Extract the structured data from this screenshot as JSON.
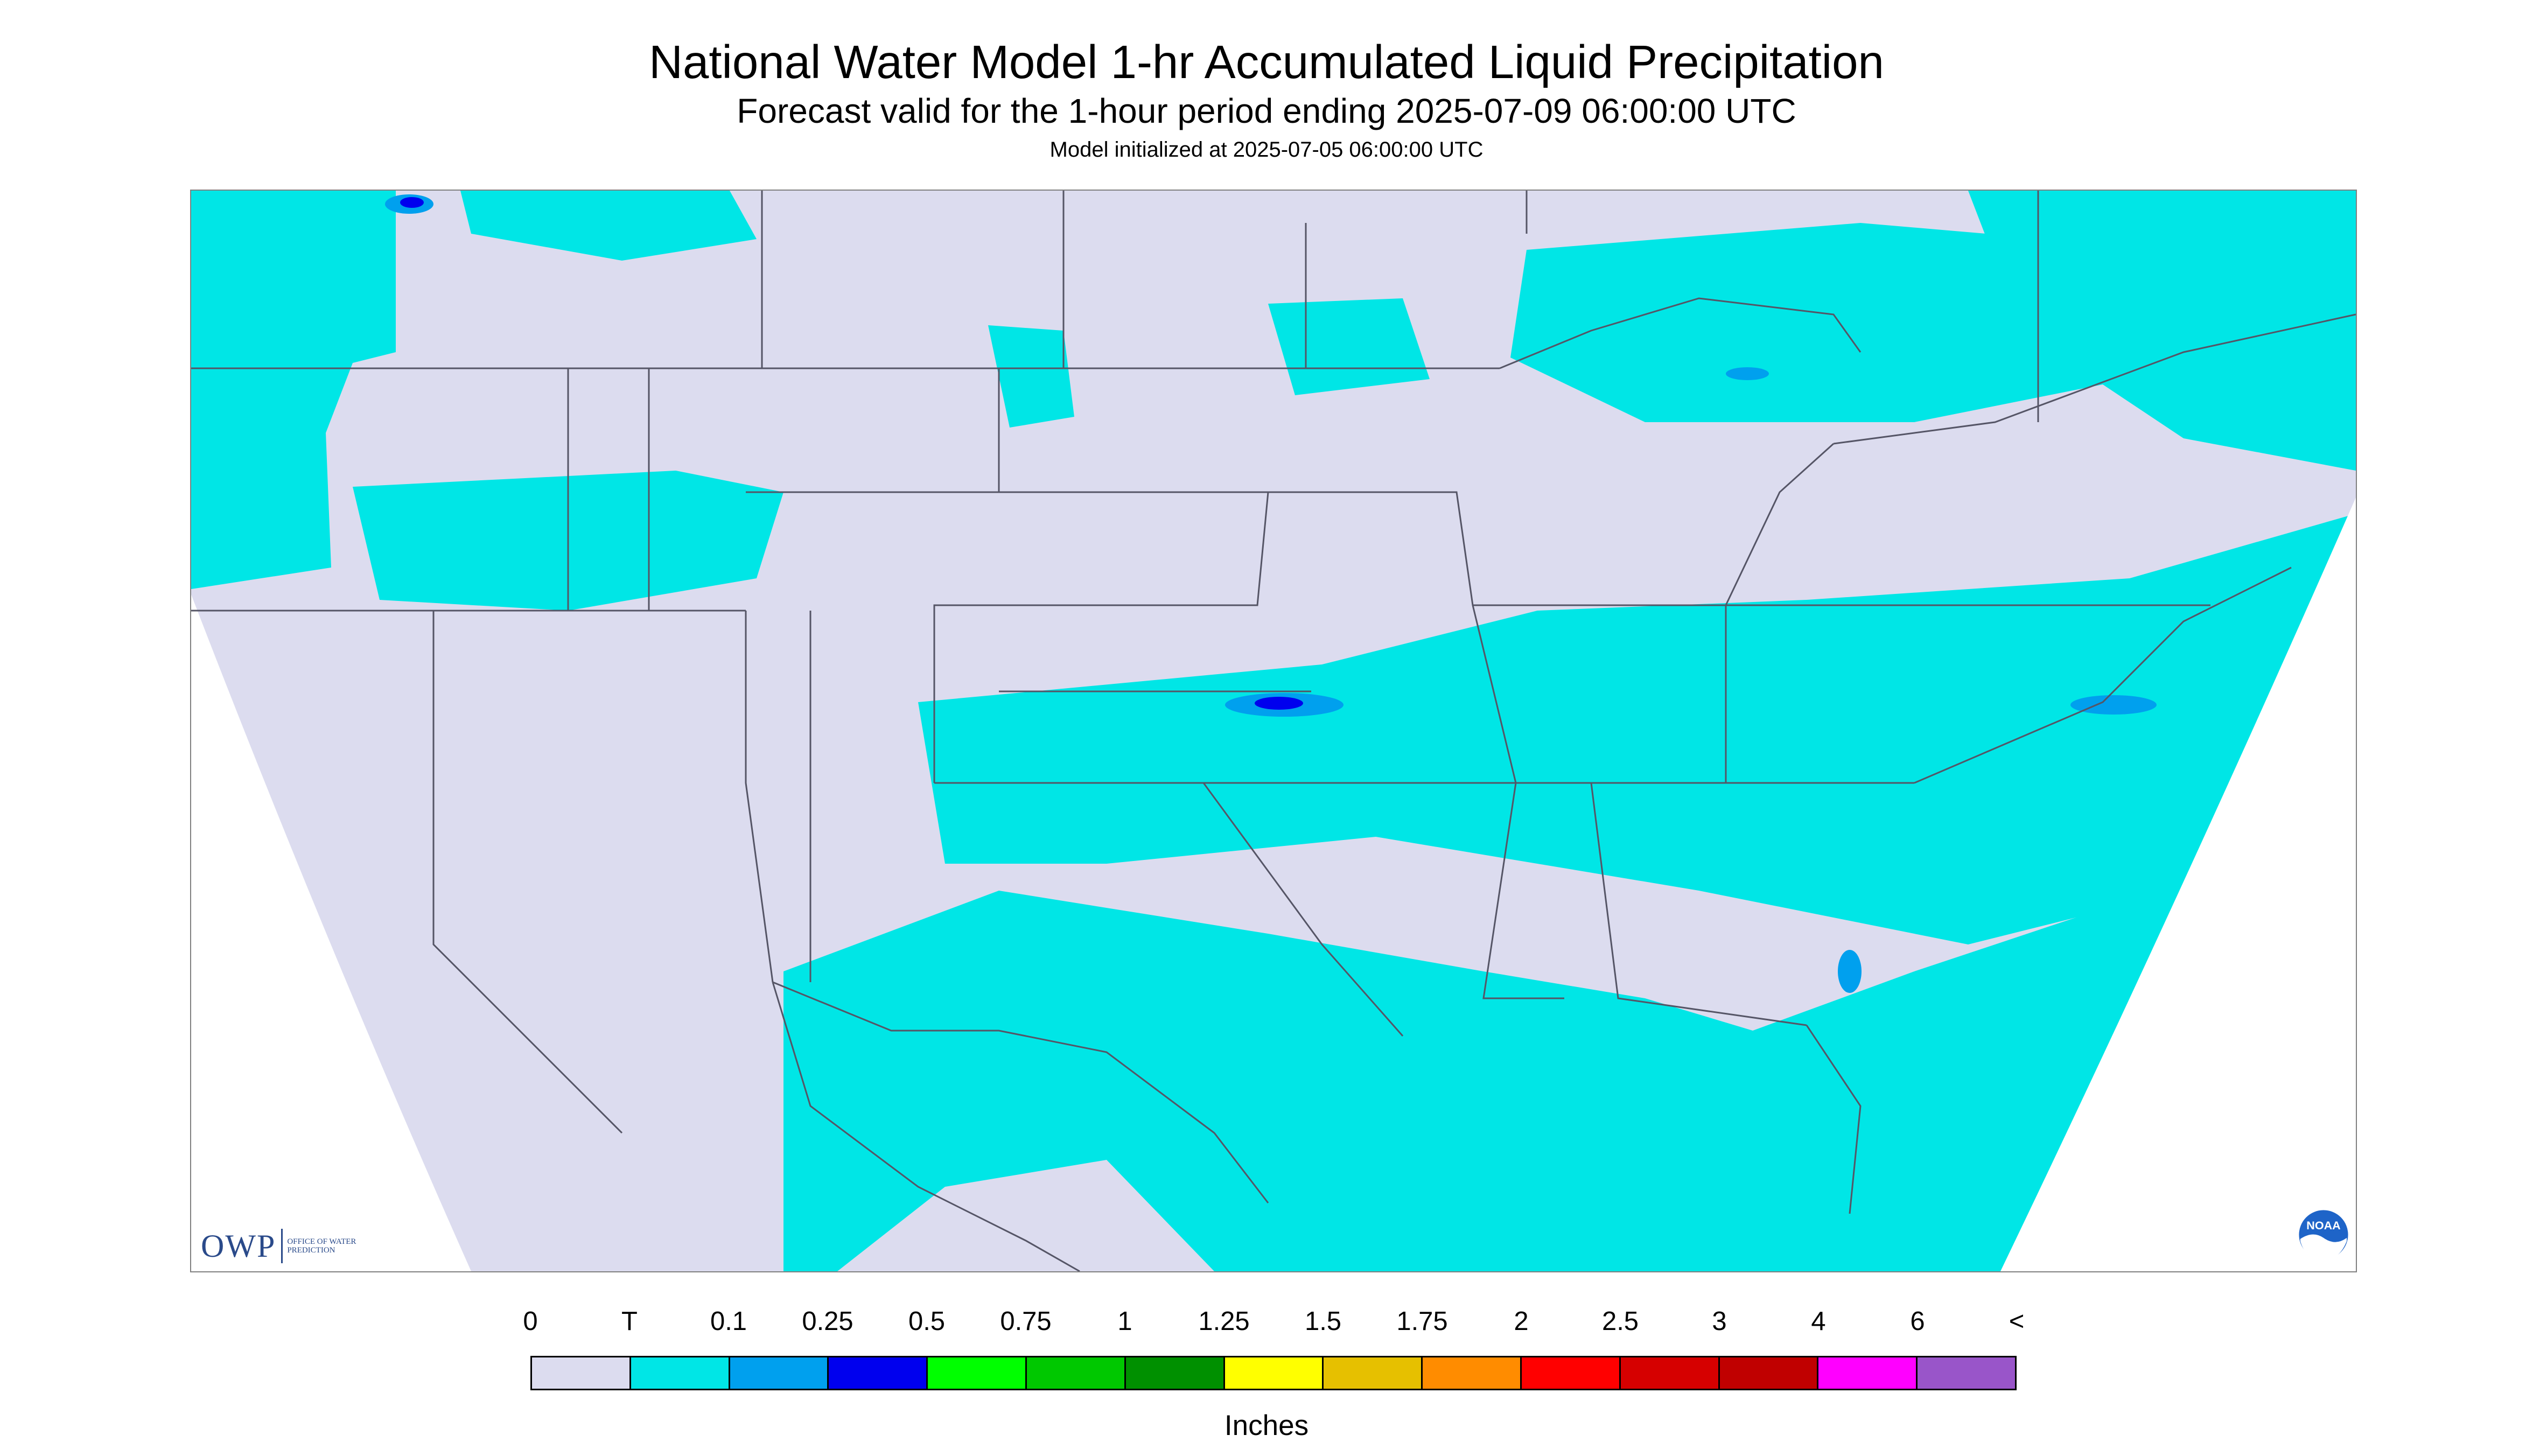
{
  "title": "National Water Model 1-hr Accumulated Liquid Precipitation",
  "subtitle": "Forecast valid for the 1-hour period ending 2025-07-09 06:00:00 UTC",
  "init_text": "Model initialized at 2025-07-05 06:00:00 UTC",
  "legend": {
    "units": "Inches",
    "labels": [
      "0",
      "T",
      "0.1",
      "0.25",
      "0.5",
      "0.75",
      "1",
      "1.25",
      "1.5",
      "1.75",
      "2",
      "2.5",
      "3",
      "4",
      "6",
      "<"
    ],
    "colors": [
      "#dcdcef",
      "#00e6e6",
      "#00a0ee",
      "#0000ee",
      "#00ff00",
      "#00c800",
      "#009000",
      "#ffff00",
      "#e6c000",
      "#ff8c00",
      "#ff0000",
      "#d60000",
      "#c00000",
      "#ff00ff",
      "#9955c9"
    ]
  },
  "colors": {
    "no_precip": "#dcdcef",
    "trace": "#00e6e6",
    "light": "#00a0ee",
    "moderate": "#0000ee",
    "outside_domain": "#ffffff",
    "boundaries": "#555566"
  },
  "logos": {
    "owp_mark": "OWP",
    "owp_name": "Office of Water Prediction",
    "noaa_mark": "NOAA"
  },
  "icons": {
    "owp": "owp-logo-icon",
    "noaa": "noaa-logo-icon"
  }
}
